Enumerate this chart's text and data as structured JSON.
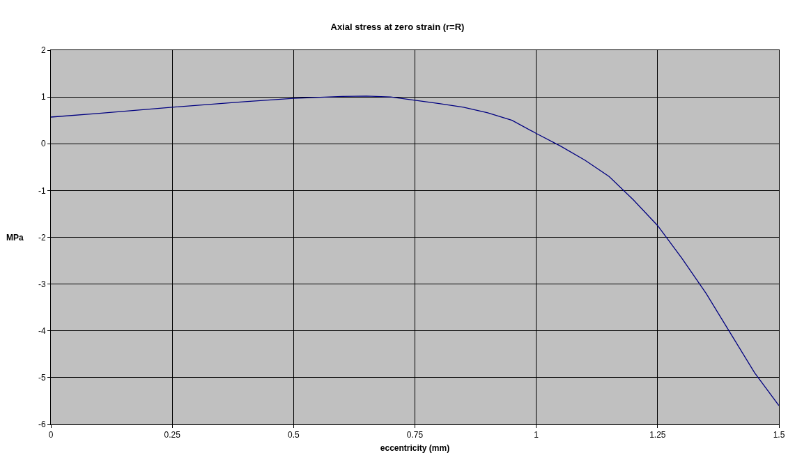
{
  "chart_data": {
    "type": "line",
    "title": "Axial stress at zero strain (r=R)",
    "xlabel": "eccentricity (mm)",
    "ylabel": "MPa",
    "x": [
      0,
      0.1,
      0.25,
      0.4,
      0.5,
      0.6,
      0.65,
      0.7,
      0.75,
      0.8,
      0.85,
      0.9,
      0.95,
      1.0,
      1.05,
      1.1,
      1.15,
      1.2,
      1.25,
      1.3,
      1.35,
      1.4,
      1.45,
      1.5
    ],
    "series": [
      {
        "color": "#000080",
        "values": [
          0.57,
          0.65,
          0.78,
          0.9,
          0.97,
          1.01,
          1.02,
          1.0,
          0.93,
          0.86,
          0.78,
          0.66,
          0.5,
          0.22,
          -0.05,
          -0.35,
          -0.7,
          -1.2,
          -1.75,
          -2.45,
          -3.2,
          -4.05,
          -4.9,
          -5.6
        ]
      }
    ],
    "xlim": [
      0,
      1.5
    ],
    "xticks": [
      0,
      0.25,
      0.5,
      0.75,
      1,
      1.25,
      1.5
    ],
    "ylim": [
      -6,
      2
    ],
    "yticks": [
      -6,
      -5,
      -4,
      -3,
      -2,
      -1,
      0,
      1,
      2
    ],
    "grid": true,
    "marker": "none",
    "line_style": "solid"
  }
}
